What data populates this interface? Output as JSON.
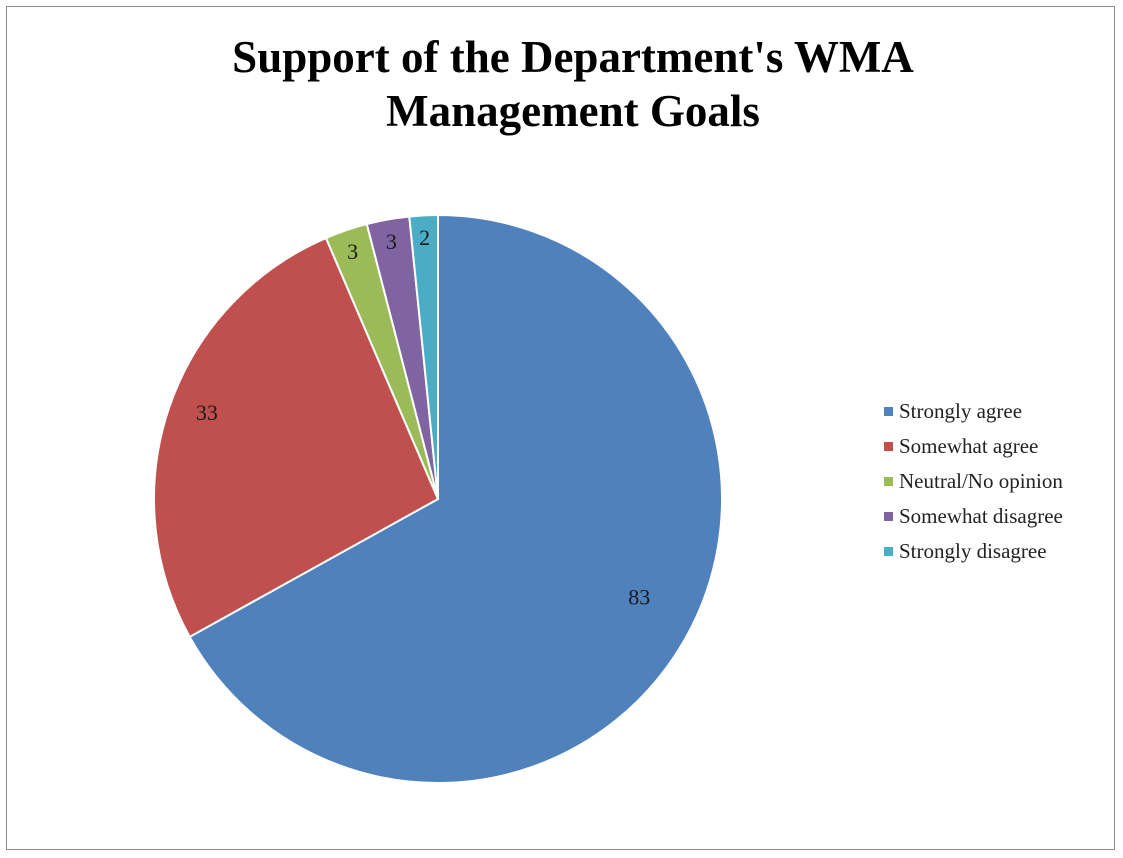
{
  "chart_data": {
    "type": "pie",
    "title": "Support of the Department's WMA Management Goals",
    "title_lines": [
      "Support of the Department's WMA",
      "Management Goals"
    ],
    "categories": [
      "Strongly agree",
      "Somewhat agree",
      "Neutral/No opinion",
      "Somewhat disagree",
      "Strongly disagree"
    ],
    "values": [
      83,
      33,
      3,
      3,
      2
    ],
    "data_labels": [
      "83",
      "33",
      "3",
      "3",
      "2"
    ],
    "colors": [
      "#4F81BD",
      "#C0504D",
      "#9BBB59",
      "#8064A2",
      "#4BACC6"
    ],
    "legend_position": "right",
    "start_angle": "top, clockwise"
  }
}
